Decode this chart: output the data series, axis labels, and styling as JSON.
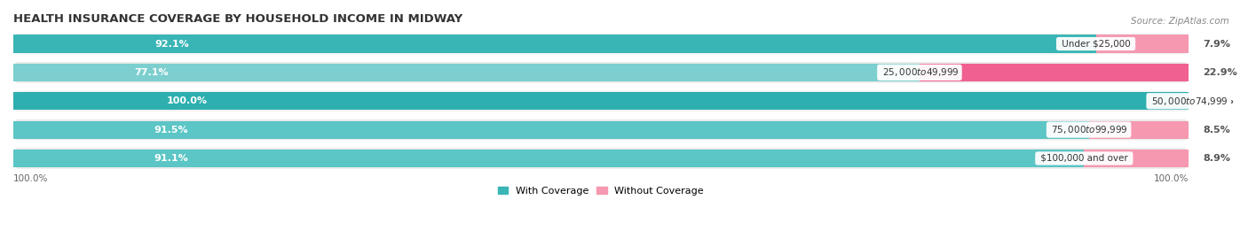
{
  "title": "HEALTH INSURANCE COVERAGE BY HOUSEHOLD INCOME IN MIDWAY",
  "source": "Source: ZipAtlas.com",
  "categories": [
    "Under $25,000",
    "$25,000 to $49,999",
    "$50,000 to $74,999",
    "$75,000 to $99,999",
    "$100,000 and over"
  ],
  "with_coverage": [
    92.1,
    77.1,
    100.0,
    91.5,
    91.1
  ],
  "without_coverage": [
    7.9,
    22.9,
    0.0,
    8.5,
    8.9
  ],
  "teal_colors": [
    "#3ab5b5",
    "#7dcfcf",
    "#2eafaf",
    "#5cc5c5",
    "#5cc5c5"
  ],
  "pink_colors": [
    "#f598b0",
    "#f06090",
    "#f0b8c8",
    "#f598b0",
    "#f598b0"
  ],
  "row_bg_colors": [
    "#f2f2f2",
    "#eaeaea",
    "#f2f2f2",
    "#eaeaea",
    "#eaeaea"
  ],
  "title_fontsize": 9.5,
  "label_fontsize": 8,
  "tick_fontsize": 7.5,
  "legend_fontsize": 8,
  "source_fontsize": 7.5,
  "cat_label_fontsize": 7.5,
  "wo_label_fontsize": 8
}
